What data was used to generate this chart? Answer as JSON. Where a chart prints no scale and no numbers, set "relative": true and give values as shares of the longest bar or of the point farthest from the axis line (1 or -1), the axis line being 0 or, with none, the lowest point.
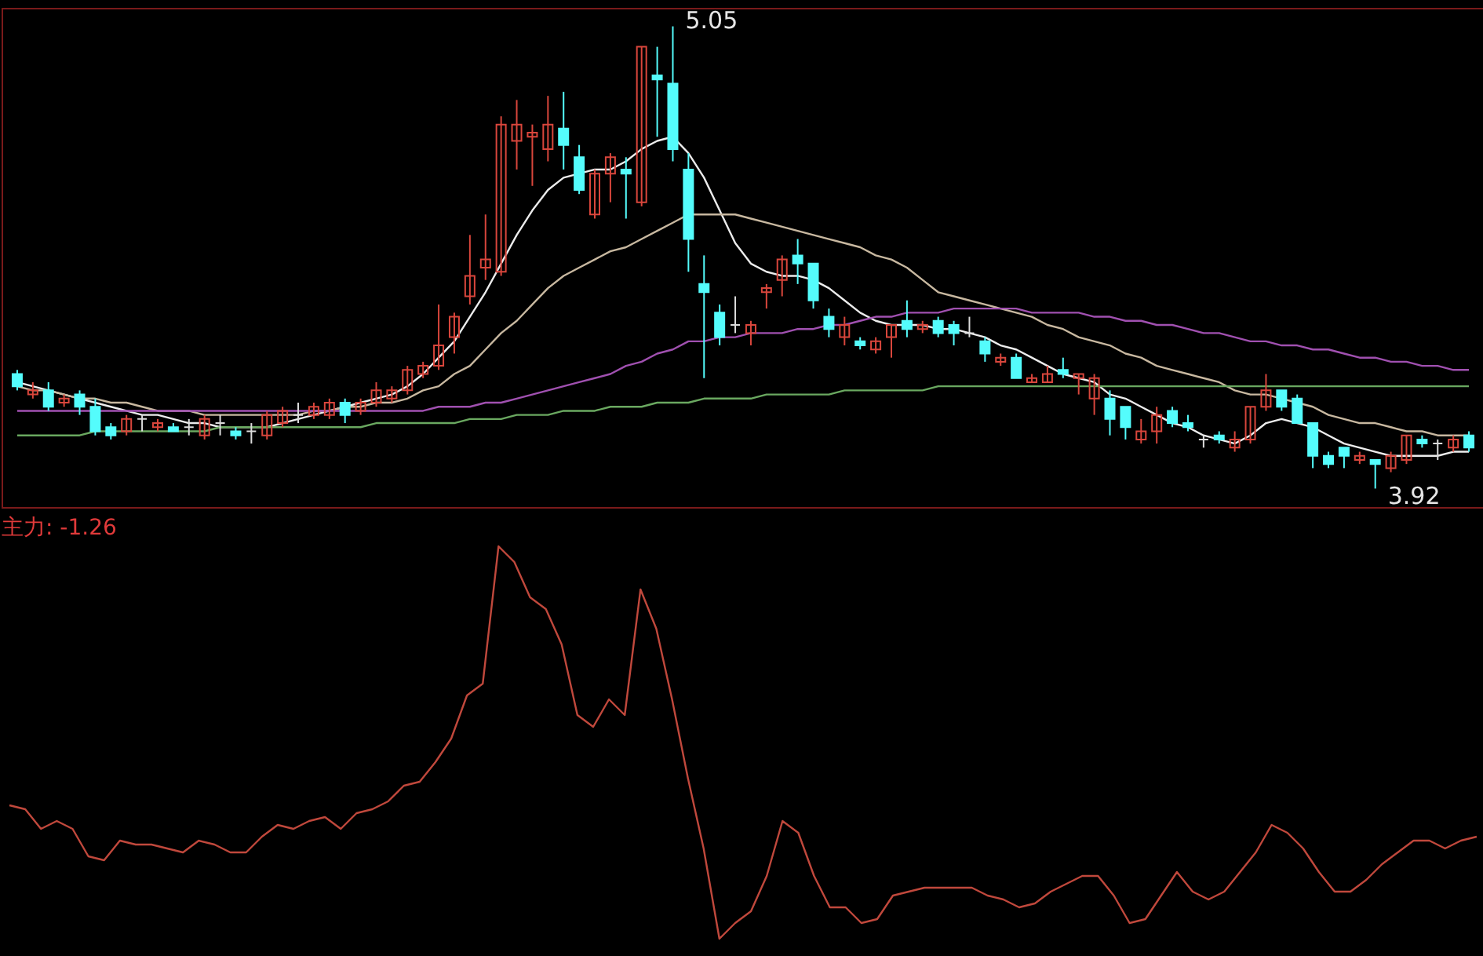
{
  "chart_data": [
    {
      "type": "candlestick",
      "categories": [
        null,
        null,
        null,
        null,
        null,
        null,
        null,
        null,
        null,
        null,
        null,
        null,
        null,
        null,
        null,
        null,
        null,
        null,
        null,
        null,
        null,
        null,
        null,
        null,
        null,
        null,
        null,
        null,
        null,
        null,
        null,
        null,
        null,
        null,
        null,
        null,
        null,
        null,
        null,
        null,
        null,
        null,
        null,
        null,
        null,
        null,
        null,
        null,
        null,
        null,
        null,
        null,
        null,
        null,
        null,
        null,
        null,
        null,
        null,
        null,
        null,
        null,
        null,
        null,
        null,
        null,
        null,
        null,
        null,
        null,
        null,
        null,
        null,
        null,
        null,
        null,
        null,
        null,
        null,
        null,
        null,
        null,
        null,
        null,
        null,
        null,
        null,
        null,
        null,
        null,
        null,
        null,
        null,
        null
      ],
      "ohlc": [
        [
          4.2,
          4.21,
          4.16,
          4.17
        ],
        [
          4.15,
          4.18,
          4.14,
          4.16
        ],
        [
          4.16,
          4.18,
          4.11,
          4.12
        ],
        [
          4.13,
          4.15,
          4.12,
          4.14
        ],
        [
          4.15,
          4.16,
          4.1,
          4.12
        ],
        [
          4.12,
          4.14,
          4.05,
          4.06
        ],
        [
          4.07,
          4.08,
          4.04,
          4.05
        ],
        [
          4.06,
          4.1,
          4.05,
          4.09
        ],
        [
          4.09,
          4.1,
          4.06,
          4.09
        ],
        [
          4.07,
          4.09,
          4.06,
          4.08
        ],
        [
          4.07,
          4.08,
          4.06,
          4.06
        ],
        [
          4.07,
          4.09,
          4.05,
          4.07
        ],
        [
          4.05,
          4.1,
          4.04,
          4.09
        ],
        [
          4.08,
          4.1,
          4.05,
          4.08
        ],
        [
          4.06,
          4.07,
          4.04,
          4.05
        ],
        [
          4.06,
          4.08,
          4.03,
          4.06
        ],
        [
          4.05,
          4.11,
          4.04,
          4.1
        ],
        [
          4.08,
          4.12,
          4.07,
          4.11
        ],
        [
          4.1,
          4.13,
          4.08,
          4.1
        ],
        [
          4.1,
          4.13,
          4.09,
          4.12
        ],
        [
          4.1,
          4.14,
          4.09,
          4.13
        ],
        [
          4.13,
          4.14,
          4.08,
          4.1
        ],
        [
          4.11,
          4.14,
          4.1,
          4.13
        ],
        [
          4.13,
          4.18,
          4.12,
          4.16
        ],
        [
          4.14,
          4.17,
          4.13,
          4.16
        ],
        [
          4.16,
          4.22,
          4.15,
          4.21
        ],
        [
          4.2,
          4.23,
          4.19,
          4.22
        ],
        [
          4.22,
          4.37,
          4.21,
          4.27
        ],
        [
          4.29,
          4.35,
          4.25,
          4.34
        ],
        [
          4.39,
          4.54,
          4.37,
          4.44
        ],
        [
          4.46,
          4.59,
          4.43,
          4.48
        ],
        [
          4.45,
          4.83,
          4.44,
          4.81
        ],
        [
          4.77,
          4.87,
          4.7,
          4.81
        ],
        [
          4.78,
          4.81,
          4.66,
          4.79
        ],
        [
          4.75,
          4.88,
          4.72,
          4.81
        ],
        [
          4.8,
          4.89,
          4.7,
          4.76
        ],
        [
          4.73,
          4.76,
          4.64,
          4.65
        ],
        [
          4.59,
          4.7,
          4.58,
          4.69
        ],
        [
          4.69,
          4.74,
          4.62,
          4.73
        ],
        [
          4.7,
          4.73,
          4.58,
          4.69
        ],
        [
          4.62,
          5.0,
          4.61,
          5.0
        ],
        [
          4.93,
          5.0,
          4.78,
          4.92
        ],
        [
          4.91,
          5.05,
          4.72,
          4.75
        ],
        [
          4.7,
          4.74,
          4.45,
          4.53
        ],
        [
          4.42,
          4.49,
          4.19,
          4.4
        ],
        [
          4.35,
          4.37,
          4.27,
          4.29
        ],
        [
          4.32,
          4.39,
          4.3,
          4.32
        ],
        [
          4.3,
          4.33,
          4.27,
          4.32
        ],
        [
          4.4,
          4.42,
          4.36,
          4.41
        ],
        [
          4.43,
          4.49,
          4.39,
          4.48
        ],
        [
          4.49,
          4.53,
          4.42,
          4.47
        ],
        [
          4.47,
          4.47,
          4.36,
          4.38
        ],
        [
          4.34,
          4.36,
          4.29,
          4.31
        ],
        [
          4.29,
          4.34,
          4.27,
          4.32
        ],
        [
          4.28,
          4.29,
          4.26,
          4.27
        ],
        [
          4.26,
          4.29,
          4.25,
          4.28
        ],
        [
          4.29,
          4.32,
          4.24,
          4.32
        ],
        [
          4.33,
          4.38,
          4.29,
          4.31
        ],
        [
          4.31,
          4.33,
          4.3,
          4.32
        ],
        [
          4.33,
          4.34,
          4.29,
          4.3
        ],
        [
          4.32,
          4.33,
          4.27,
          4.3
        ],
        [
          4.3,
          4.34,
          4.29,
          4.3
        ],
        [
          4.28,
          4.29,
          4.23,
          4.25
        ],
        [
          4.23,
          4.25,
          4.22,
          4.24
        ],
        [
          4.24,
          4.25,
          4.19,
          4.19
        ],
        [
          4.18,
          4.2,
          4.18,
          4.19
        ],
        [
          4.18,
          4.22,
          4.18,
          4.2
        ],
        [
          4.21,
          4.24,
          4.19,
          4.2
        ],
        [
          4.19,
          4.2,
          4.15,
          4.2
        ],
        [
          4.14,
          4.2,
          4.1,
          4.19
        ],
        [
          4.14,
          4.16,
          4.05,
          4.09
        ],
        [
          4.12,
          4.12,
          4.04,
          4.07
        ],
        [
          4.04,
          4.09,
          4.03,
          4.06
        ],
        [
          4.06,
          4.12,
          4.03,
          4.1
        ],
        [
          4.11,
          4.12,
          4.07,
          4.08
        ],
        [
          4.08,
          4.1,
          4.06,
          4.07
        ],
        [
          4.04,
          4.05,
          4.02,
          4.04
        ],
        [
          4.05,
          4.06,
          4.03,
          4.04
        ],
        [
          4.02,
          4.06,
          4.01,
          4.04
        ],
        [
          4.04,
          4.12,
          4.03,
          4.12
        ],
        [
          4.12,
          4.2,
          4.11,
          4.16
        ],
        [
          4.16,
          4.16,
          4.11,
          4.12
        ],
        [
          4.14,
          4.15,
          4.08,
          4.08
        ],
        [
          4.08,
          4.08,
          3.97,
          4.0
        ],
        [
          4.0,
          4.01,
          3.97,
          3.98
        ],
        [
          4.02,
          4.02,
          3.97,
          4.0
        ],
        [
          3.99,
          4.01,
          3.98,
          4.0
        ],
        [
          3.99,
          3.99,
          3.92,
          3.98
        ],
        [
          3.97,
          4.01,
          3.96,
          4.0
        ],
        [
          3.99,
          4.05,
          3.98,
          4.05
        ],
        [
          4.04,
          4.05,
          4.02,
          4.03
        ],
        [
          4.03,
          4.04,
          3.99,
          4.03
        ],
        [
          4.02,
          4.05,
          4.01,
          4.04
        ],
        [
          4.05,
          4.06,
          4.01,
          4.02
        ]
      ],
      "colors": [
        "#54fcfc",
        "#d9463c",
        "#54fcfc",
        "#d9463c",
        "#54fcfc",
        "#54fcfc",
        "#54fcfc",
        "#d9463c",
        "#dcdcdc",
        "#d9463c",
        "#54fcfc",
        "#dcdcdc",
        "#d9463c",
        "#dcdcdc",
        "#54fcfc",
        "#dcdcdc",
        "#d9463c",
        "#d9463c",
        "#dcdcdc",
        "#d9463c",
        "#d9463c",
        "#54fcfc",
        "#d9463c",
        "#d9463c",
        "#d9463c",
        "#d9463c",
        "#d9463c",
        "#d9463c",
        "#d9463c",
        "#d9463c",
        "#d9463c",
        "#d9463c",
        "#d9463c",
        "#d9463c",
        "#d9463c",
        "#54fcfc",
        "#54fcfc",
        "#d9463c",
        "#d9463c",
        "#54fcfc",
        "#d9463c",
        "#54fcfc",
        "#54fcfc",
        "#54fcfc",
        "#54fcfc",
        "#54fcfc",
        "#dcdcdc",
        "#d9463c",
        "#d9463c",
        "#d9463c",
        "#54fcfc",
        "#54fcfc",
        "#54fcfc",
        "#d9463c",
        "#54fcfc",
        "#d9463c",
        "#d9463c",
        "#54fcfc",
        "#d9463c",
        "#54fcfc",
        "#54fcfc",
        "#dcdcdc",
        "#54fcfc",
        "#d9463c",
        "#54fcfc",
        "#d9463c",
        "#d9463c",
        "#54fcfc",
        "#d9463c",
        "#d9463c",
        "#54fcfc",
        "#54fcfc",
        "#d9463c",
        "#d9463c",
        "#54fcfc",
        "#54fcfc",
        "#dcdcdc",
        "#54fcfc",
        "#d9463c",
        "#d9463c",
        "#d9463c",
        "#54fcfc",
        "#54fcfc",
        "#54fcfc",
        "#54fcfc",
        "#54fcfc",
        "#d9463c",
        "#54fcfc",
        "#d9463c",
        "#d9463c",
        "#54fcfc",
        "#dcdcdc",
        "#d9463c",
        "#54fcfc"
      ],
      "series": [
        {
          "type": "line",
          "color": "#ececec",
          "values": [
            4.18,
            4.17,
            4.16,
            4.15,
            4.14,
            4.13,
            4.12,
            4.11,
            4.1,
            4.1,
            4.09,
            4.08,
            4.08,
            4.07,
            4.07,
            4.07,
            4.07,
            4.08,
            4.09,
            4.1,
            4.11,
            4.12,
            4.13,
            4.14,
            4.15,
            4.17,
            4.2,
            4.24,
            4.28,
            4.34,
            4.4,
            4.47,
            4.54,
            4.6,
            4.65,
            4.68,
            4.69,
            4.7,
            4.7,
            4.72,
            4.75,
            4.77,
            4.78,
            4.74,
            4.68,
            4.6,
            4.52,
            4.47,
            4.45,
            4.44,
            4.44,
            4.43,
            4.41,
            4.38,
            4.35,
            4.33,
            4.32,
            4.32,
            4.32,
            4.31,
            4.31,
            4.3,
            4.29,
            4.27,
            4.26,
            4.24,
            4.22,
            4.2,
            4.19,
            4.18,
            4.15,
            4.14,
            4.12,
            4.1,
            4.08,
            4.07,
            4.05,
            4.04,
            4.03,
            4.05,
            4.08,
            4.09,
            4.08,
            4.07,
            4.05,
            4.03,
            4.02,
            4.01,
            4.0,
            4.0,
            4.0,
            4.0,
            4.01,
            4.01
          ]
        },
        {
          "type": "line",
          "color": "#c8b8a0",
          "values": [
            4.17,
            4.16,
            4.16,
            4.15,
            4.14,
            4.14,
            4.13,
            4.13,
            4.12,
            4.11,
            4.11,
            4.11,
            4.1,
            4.1,
            4.1,
            4.1,
            4.1,
            4.1,
            4.1,
            4.11,
            4.11,
            4.12,
            4.12,
            4.13,
            4.13,
            4.14,
            4.16,
            4.17,
            4.2,
            4.22,
            4.26,
            4.3,
            4.33,
            4.37,
            4.41,
            4.44,
            4.46,
            4.48,
            4.5,
            4.51,
            4.53,
            4.55,
            4.57,
            4.59,
            4.59,
            4.59,
            4.59,
            4.58,
            4.57,
            4.56,
            4.55,
            4.54,
            4.53,
            4.52,
            4.51,
            4.49,
            4.48,
            4.46,
            4.43,
            4.4,
            4.39,
            4.38,
            4.37,
            4.36,
            4.35,
            4.34,
            4.32,
            4.31,
            4.29,
            4.28,
            4.27,
            4.25,
            4.24,
            4.22,
            4.21,
            4.2,
            4.19,
            4.18,
            4.16,
            4.15,
            4.15,
            4.14,
            4.13,
            4.12,
            4.1,
            4.09,
            4.08,
            4.08,
            4.07,
            4.06,
            4.06,
            4.05,
            4.05,
            4.05
          ]
        },
        {
          "type": "line",
          "color": "#a050b0",
          "values": [
            4.11,
            4.11,
            4.11,
            4.11,
            4.11,
            4.11,
            4.11,
            4.11,
            4.11,
            4.11,
            4.11,
            4.11,
            4.11,
            4.11,
            4.11,
            4.11,
            4.11,
            4.11,
            4.11,
            4.11,
            4.11,
            4.11,
            4.11,
            4.11,
            4.11,
            4.11,
            4.11,
            4.12,
            4.12,
            4.12,
            4.13,
            4.13,
            4.14,
            4.15,
            4.16,
            4.17,
            4.18,
            4.19,
            4.2,
            4.22,
            4.23,
            4.25,
            4.26,
            4.28,
            4.28,
            4.29,
            4.29,
            4.3,
            4.3,
            4.3,
            4.31,
            4.31,
            4.32,
            4.32,
            4.33,
            4.34,
            4.34,
            4.35,
            4.35,
            4.35,
            4.36,
            4.36,
            4.36,
            4.36,
            4.36,
            4.35,
            4.35,
            4.35,
            4.35,
            4.34,
            4.34,
            4.33,
            4.33,
            4.32,
            4.32,
            4.31,
            4.3,
            4.3,
            4.29,
            4.28,
            4.28,
            4.27,
            4.27,
            4.26,
            4.26,
            4.25,
            4.24,
            4.24,
            4.23,
            4.23,
            4.22,
            4.22,
            4.21,
            4.21
          ]
        },
        {
          "type": "line",
          "color": "#6aa860",
          "values": [
            4.05,
            4.05,
            4.05,
            4.05,
            4.05,
            4.06,
            4.06,
            4.06,
            4.06,
            4.06,
            4.06,
            4.06,
            4.06,
            4.07,
            4.07,
            4.07,
            4.07,
            4.07,
            4.07,
            4.07,
            4.07,
            4.07,
            4.07,
            4.08,
            4.08,
            4.08,
            4.08,
            4.08,
            4.08,
            4.09,
            4.09,
            4.09,
            4.1,
            4.1,
            4.1,
            4.11,
            4.11,
            4.11,
            4.12,
            4.12,
            4.12,
            4.13,
            4.13,
            4.13,
            4.14,
            4.14,
            4.14,
            4.14,
            4.15,
            4.15,
            4.15,
            4.15,
            4.15,
            4.16,
            4.16,
            4.16,
            4.16,
            4.16,
            4.16,
            4.17,
            4.17,
            4.17,
            4.17,
            4.17,
            4.17,
            4.17,
            4.17,
            4.17,
            4.17,
            4.17,
            4.17,
            4.17,
            4.17,
            4.17,
            4.17,
            4.17,
            4.17,
            4.17,
            4.17,
            4.17,
            4.17,
            4.17,
            4.17,
            4.17,
            4.17,
            4.17,
            4.17,
            4.17,
            4.17,
            4.17,
            4.17,
            4.17,
            4.17,
            4.17
          ]
        }
      ],
      "annotations": [
        "5.05",
        "3.92"
      ]
    },
    {
      "type": "line",
      "title": "主力: -1.26",
      "relative": true,
      "categories": [
        null,
        null,
        null,
        null,
        null,
        null,
        null,
        null,
        null,
        null,
        null,
        null,
        null,
        null,
        null,
        null,
        null,
        null,
        null,
        null,
        null,
        null,
        null,
        null,
        null,
        null,
        null,
        null,
        null,
        null,
        null,
        null,
        null,
        null,
        null,
        null,
        null,
        null,
        null,
        null,
        null,
        null,
        null,
        null,
        null,
        null,
        null,
        null,
        null,
        null,
        null,
        null,
        null,
        null,
        null,
        null,
        null,
        null,
        null,
        null,
        null,
        null,
        null,
        null,
        null,
        null,
        null,
        null,
        null,
        null,
        null,
        null,
        null,
        null,
        null,
        null,
        null,
        null,
        null,
        null,
        null,
        null,
        null,
        null,
        null,
        null,
        null,
        null,
        null,
        null,
        null,
        null,
        null,
        null
      ],
      "series": [
        {
          "color": "#c0483c",
          "values": [
            0.34,
            0.33,
            0.28,
            0.3,
            0.28,
            0.21,
            0.2,
            0.25,
            0.24,
            0.24,
            0.23,
            0.22,
            0.25,
            0.24,
            0.22,
            0.22,
            0.26,
            0.29,
            0.28,
            0.3,
            0.31,
            0.28,
            0.32,
            0.33,
            0.35,
            0.39,
            0.4,
            0.45,
            0.51,
            0.62,
            0.65,
            1.0,
            0.96,
            0.87,
            0.84,
            0.75,
            0.57,
            0.54,
            0.61,
            0.57,
            0.89,
            0.79,
            0.61,
            0.41,
            0.23,
            0.0,
            0.04,
            0.07,
            0.16,
            0.3,
            0.27,
            0.16,
            0.08,
            0.08,
            0.04,
            0.05,
            0.11,
            0.12,
            0.13,
            0.13,
            0.13,
            0.13,
            0.11,
            0.1,
            0.08,
            0.09,
            0.12,
            0.14,
            0.16,
            0.16,
            0.11,
            0.04,
            0.05,
            0.11,
            0.17,
            0.12,
            0.1,
            0.12,
            0.17,
            0.22,
            0.29,
            0.27,
            0.23,
            0.17,
            0.12,
            0.12,
            0.15,
            0.19,
            0.22,
            0.25,
            0.25,
            0.23,
            0.25,
            0.26
          ]
        }
      ]
    }
  ]
}
